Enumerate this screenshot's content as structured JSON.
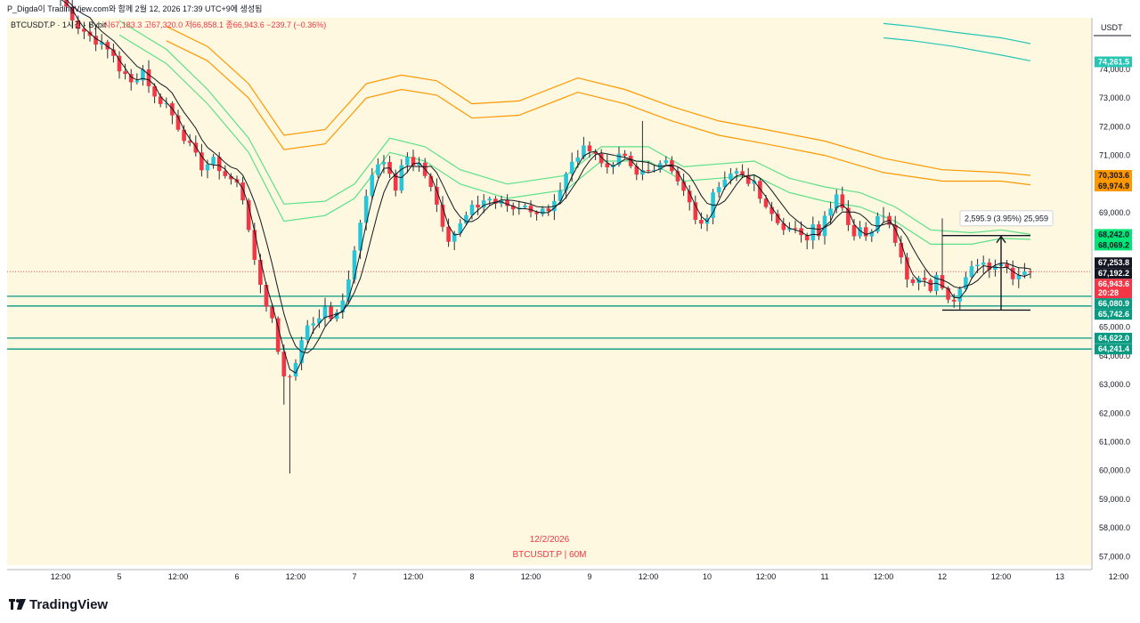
{
  "header": {
    "author_line": "P_Digda이 TradingView.com와 함께 2월 12, 2026 17:39 UTC+9에 생성됨",
    "symbol_line": "BTCUSDT.P · 1시간 · Bybit",
    "ohlc": "시67,183.3  고67,320.0  저66,858.1  종66,943.6  −239.7 (−0.36%)"
  },
  "currency": "USDT",
  "watermark": {
    "date": "12/2/2026",
    "symbol": "BTCUSDT.P | 60M"
  },
  "brand": {
    "name": "TradingView"
  },
  "measure": {
    "label": "2,595.9 (3.95%) 25,959"
  },
  "colors": {
    "bg": "#fdf8df",
    "up": "#26c6da",
    "down": "#f23645",
    "wick": "#2a2e39",
    "orange": "#ff9800",
    "green_band": "#5ce08a",
    "teal_band": "#26c6b5",
    "support": "#089981",
    "ma": "#131722"
  },
  "chart_data": {
    "type": "candlestick",
    "title": "BTCUSDT.P · 1시간 · Bybit",
    "ylim": [
      56700,
      75800
    ],
    "y_ticks": [
      57000,
      58000,
      59000,
      60000,
      61000,
      62000,
      63000,
      64000,
      65000,
      66000,
      67000,
      68000,
      69000,
      70000,
      71000,
      72000,
      73000,
      74000
    ],
    "y_tick_labels": [
      "57,000.0",
      "58,000.0",
      "59,000.0",
      "60,000.0",
      "61,000.0",
      "62,000.0",
      "63,000.0",
      "64,000.0",
      "65,000.0",
      "66,000.0",
      "67,000.0",
      "68,000.0",
      "69,000.0",
      "70,000.0",
      "71,000.0",
      "72,000.0",
      "73,000.0",
      "74,000.0"
    ],
    "x_range": [
      0,
      174
    ],
    "x_ticks": [
      {
        "i": 0,
        "label": "12:00"
      },
      {
        "i": 10,
        "label": "5"
      },
      {
        "i": 20,
        "label": "12:00"
      },
      {
        "i": 30,
        "label": "6"
      },
      {
        "i": 40,
        "label": "12:00"
      },
      {
        "i": 50,
        "label": "7"
      },
      {
        "i": 60,
        "label": "12:00"
      },
      {
        "i": 70,
        "label": "8"
      },
      {
        "i": 80,
        "label": "12:00"
      },
      {
        "i": 90,
        "label": "9"
      },
      {
        "i": 100,
        "label": "12:00"
      },
      {
        "i": 110,
        "label": "10"
      },
      {
        "i": 120,
        "label": "12:00"
      },
      {
        "i": 130,
        "label": "11"
      },
      {
        "i": 140,
        "label": "12:00"
      },
      {
        "i": 150,
        "label": "12"
      },
      {
        "i": 160,
        "label": "12:00"
      },
      {
        "i": 170,
        "label": "13"
      },
      {
        "i": 180,
        "label": "12:00"
      }
    ],
    "close_path": [
      [
        0,
        76500
      ],
      [
        3,
        75500
      ],
      [
        6,
        75000
      ],
      [
        9,
        74500
      ],
      [
        10,
        74000
      ],
      [
        12,
        73500
      ],
      [
        14,
        74000
      ],
      [
        16,
        73000
      ],
      [
        18,
        72800
      ],
      [
        20,
        72000
      ],
      [
        22,
        71300
      ],
      [
        24,
        70600
      ],
      [
        26,
        70800
      ],
      [
        28,
        70300
      ],
      [
        30,
        70000
      ],
      [
        31,
        69500
      ],
      [
        32,
        68500
      ],
      [
        33,
        67200
      ],
      [
        34,
        66500
      ],
      [
        35,
        65800
      ],
      [
        36,
        65300
      ],
      [
        37,
        64200
      ],
      [
        38,
        63400
      ],
      [
        39,
        63200
      ],
      [
        40,
        63800
      ],
      [
        41,
        64600
      ],
      [
        42,
        65200
      ],
      [
        43,
        65000
      ],
      [
        44,
        65400
      ],
      [
        45,
        65600
      ],
      [
        46,
        65300
      ],
      [
        47,
        65600
      ],
      [
        48,
        65900
      ],
      [
        49,
        66700
      ],
      [
        50,
        67600
      ],
      [
        51,
        68600
      ],
      [
        52,
        69700
      ],
      [
        53,
        70400
      ],
      [
        54,
        70700
      ],
      [
        55,
        70900
      ],
      [
        56,
        70500
      ],
      [
        57,
        69800
      ],
      [
        58,
        70600
      ],
      [
        59,
        70900
      ],
      [
        60,
        70500
      ],
      [
        61,
        70800
      ],
      [
        62,
        70300
      ],
      [
        63,
        69900
      ],
      [
        64,
        69300
      ],
      [
        65,
        68400
      ],
      [
        66,
        68000
      ],
      [
        67,
        68300
      ],
      [
        68,
        68700
      ],
      [
        69,
        69000
      ],
      [
        70,
        69200
      ],
      [
        71,
        69300
      ],
      [
        72,
        69500
      ],
      [
        73,
        69400
      ],
      [
        74,
        69200
      ],
      [
        75,
        69300
      ],
      [
        76,
        69100
      ],
      [
        77,
        69000
      ],
      [
        78,
        69100
      ],
      [
        79,
        69200
      ],
      [
        80,
        69000
      ],
      [
        81,
        69100
      ],
      [
        82,
        69200
      ],
      [
        83,
        69100
      ],
      [
        84,
        69500
      ],
      [
        85,
        69800
      ],
      [
        86,
        70300
      ],
      [
        87,
        70700
      ],
      [
        88,
        71000
      ],
      [
        89,
        71200
      ],
      [
        90,
        71300
      ],
      [
        91,
        71100
      ],
      [
        92,
        70700
      ],
      [
        93,
        70600
      ],
      [
        94,
        70800
      ],
      [
        95,
        70900
      ],
      [
        96,
        71000
      ],
      [
        97,
        70500
      ],
      [
        98,
        70300
      ],
      [
        99,
        70500
      ],
      [
        100,
        70600
      ],
      [
        101,
        70400
      ],
      [
        102,
        70600
      ],
      [
        103,
        70900
      ],
      [
        104,
        70600
      ],
      [
        105,
        70200
      ],
      [
        106,
        69700
      ],
      [
        107,
        69300
      ],
      [
        108,
        68700
      ],
      [
        109,
        68500
      ],
      [
        110,
        68900
      ],
      [
        111,
        69600
      ],
      [
        112,
        70000
      ],
      [
        113,
        70300
      ],
      [
        114,
        70500
      ],
      [
        115,
        70600
      ],
      [
        116,
        70300
      ],
      [
        117,
        69900
      ],
      [
        118,
        70000
      ],
      [
        119,
        69600
      ],
      [
        120,
        69200
      ],
      [
        121,
        69100
      ],
      [
        122,
        68700
      ],
      [
        123,
        68400
      ],
      [
        124,
        68600
      ],
      [
        125,
        68500
      ],
      [
        126,
        68300
      ],
      [
        127,
        68100
      ],
      [
        128,
        68500
      ],
      [
        129,
        68300
      ],
      [
        130,
        69000
      ],
      [
        131,
        69300
      ],
      [
        132,
        69600
      ],
      [
        133,
        69300
      ],
      [
        134,
        68600
      ],
      [
        135,
        68300
      ],
      [
        136,
        68500
      ],
      [
        137,
        68200
      ],
      [
        138,
        68500
      ],
      [
        139,
        68800
      ],
      [
        140,
        68900
      ],
      [
        141,
        68500
      ],
      [
        142,
        68000
      ],
      [
        143,
        67300
      ],
      [
        144,
        66600
      ],
      [
        145,
        66500
      ],
      [
        146,
        66800
      ],
      [
        147,
        66700
      ],
      [
        148,
        66400
      ],
      [
        149,
        66700
      ],
      [
        150,
        66500
      ],
      [
        151,
        66100
      ],
      [
        152,
        66000
      ],
      [
        153,
        66400
      ],
      [
        154,
        66900
      ],
      [
        155,
        67100
      ],
      [
        156,
        67200
      ],
      [
        157,
        67300
      ],
      [
        158,
        67000
      ],
      [
        159,
        67000
      ],
      [
        160,
        67200
      ],
      [
        161,
        67100
      ],
      [
        162,
        66800
      ],
      [
        163,
        66700
      ],
      [
        164,
        66900
      ],
      [
        165,
        66943.6
      ]
    ],
    "events": [
      {
        "i": 38,
        "low": 62300
      },
      {
        "i": 39,
        "low": 59900
      },
      {
        "i": 99,
        "high": 72200
      },
      {
        "i": 150,
        "high": 68800
      },
      {
        "i": 153,
        "low": 65600
      }
    ],
    "bands": [
      {
        "name": "upper-teal",
        "color": "#26c6b5",
        "points": [
          [
            140,
            75600
          ],
          [
            145,
            75500
          ],
          [
            152,
            75300
          ],
          [
            160,
            75100
          ],
          [
            165,
            74900
          ]
        ]
      },
      {
        "name": "upper-teal-2",
        "color": "#26c6b5",
        "points": [
          [
            140,
            75100
          ],
          [
            145,
            75000
          ],
          [
            152,
            74800
          ],
          [
            160,
            74500
          ],
          [
            165,
            74300
          ]
        ]
      },
      {
        "name": "orange-upper",
        "color": "#ff9800",
        "points": [
          [
            18,
            75500
          ],
          [
            25,
            74800
          ],
          [
            32,
            73500
          ],
          [
            38,
            71700
          ],
          [
            45,
            71900
          ],
          [
            52,
            73500
          ],
          [
            58,
            73800
          ],
          [
            64,
            73600
          ],
          [
            70,
            72800
          ],
          [
            78,
            72900
          ],
          [
            88,
            73700
          ],
          [
            96,
            73300
          ],
          [
            104,
            72700
          ],
          [
            112,
            72200
          ],
          [
            120,
            71900
          ],
          [
            130,
            71500
          ],
          [
            140,
            70900
          ],
          [
            150,
            70500
          ],
          [
            160,
            70400
          ],
          [
            165,
            70303.6
          ]
        ]
      },
      {
        "name": "orange-lower",
        "color": "#ff9800",
        "points": [
          [
            18,
            75000
          ],
          [
            25,
            74300
          ],
          [
            32,
            73000
          ],
          [
            38,
            71200
          ],
          [
            45,
            71400
          ],
          [
            52,
            73000
          ],
          [
            58,
            73300
          ],
          [
            64,
            73100
          ],
          [
            70,
            72300
          ],
          [
            78,
            72400
          ],
          [
            88,
            73200
          ],
          [
            96,
            72800
          ],
          [
            104,
            72200
          ],
          [
            112,
            71700
          ],
          [
            120,
            71400
          ],
          [
            130,
            71000
          ],
          [
            140,
            70400
          ],
          [
            150,
            70100
          ],
          [
            160,
            70100
          ],
          [
            165,
            69974.9
          ]
        ]
      },
      {
        "name": "green-upper",
        "color": "#5ce08a",
        "points": [
          [
            10,
            75700
          ],
          [
            18,
            74700
          ],
          [
            25,
            73300
          ],
          [
            32,
            71600
          ],
          [
            38,
            69300
          ],
          [
            45,
            69400
          ],
          [
            50,
            70000
          ],
          [
            56,
            71600
          ],
          [
            62,
            71300
          ],
          [
            68,
            70500
          ],
          [
            76,
            70000
          ],
          [
            86,
            70300
          ],
          [
            92,
            71300
          ],
          [
            100,
            71300
          ],
          [
            106,
            70600
          ],
          [
            112,
            70700
          ],
          [
            118,
            70800
          ],
          [
            124,
            70200
          ],
          [
            130,
            69900
          ],
          [
            136,
            69700
          ],
          [
            142,
            69200
          ],
          [
            148,
            68400
          ],
          [
            155,
            68300
          ],
          [
            160,
            68400
          ],
          [
            165,
            68242.0
          ]
        ]
      },
      {
        "name": "green-lower",
        "color": "#5ce08a",
        "points": [
          [
            10,
            75200
          ],
          [
            18,
            74200
          ],
          [
            25,
            72800
          ],
          [
            32,
            71100
          ],
          [
            38,
            68700
          ],
          [
            45,
            68900
          ],
          [
            50,
            69500
          ],
          [
            56,
            71100
          ],
          [
            62,
            70800
          ],
          [
            68,
            70000
          ],
          [
            76,
            69500
          ],
          [
            86,
            69800
          ],
          [
            92,
            70800
          ],
          [
            100,
            70800
          ],
          [
            106,
            70100
          ],
          [
            112,
            70200
          ],
          [
            118,
            70300
          ],
          [
            124,
            69700
          ],
          [
            130,
            69400
          ],
          [
            136,
            69200
          ],
          [
            142,
            68700
          ],
          [
            148,
            67900
          ],
          [
            155,
            67900
          ],
          [
            160,
            68100
          ],
          [
            165,
            68069.2
          ]
        ]
      }
    ],
    "support_lines": [
      66080.9,
      65742.6,
      64622.0,
      64241.4
    ],
    "last_price_line": 66943.6,
    "price_badges": [
      {
        "label": "74,261.5",
        "value": 74261.5,
        "bg": "#26c6b5",
        "style": "light"
      },
      {
        "label": "70,303.6",
        "value": 70303.6,
        "bg": "#ff9800",
        "style": "dark"
      },
      {
        "label": "69,974.9",
        "value": 69974.9,
        "bg": "#ff9800",
        "style": "dark"
      },
      {
        "label": "68,242.0",
        "value": 68242.0,
        "bg": "#00e676",
        "style": "dark"
      },
      {
        "label": "68,069.2",
        "value": 68069.2,
        "bg": "#00e676",
        "style": "dark"
      },
      {
        "label": "67,253.8",
        "value": 67253.8,
        "bg": "#131722",
        "style": "light"
      },
      {
        "label": "67,192.2",
        "value": 67192.2,
        "bg": "#131722",
        "style": "light"
      },
      {
        "label": "66,943.6",
        "value": 66943.6,
        "bg": "#f23645",
        "style": "light",
        "sub": "20:28"
      },
      {
        "label": "66,080.9",
        "value": 66080.9,
        "bg": "#089981",
        "style": "light"
      },
      {
        "label": "65,742.6",
        "value": 65742.6,
        "bg": "#089981",
        "style": "light"
      },
      {
        "label": "64,622.0",
        "value": 64622.0,
        "bg": "#089981",
        "style": "light"
      },
      {
        "label": "64,241.4",
        "value": 64241.4,
        "bg": "#089981",
        "style": "light"
      }
    ],
    "measure_range": {
      "i_start": 150,
      "i_end": 165,
      "i_arrow": 160,
      "low": 65600,
      "high": 68200
    },
    "current_price": 66943.6,
    "current_countdown": "20:28"
  }
}
